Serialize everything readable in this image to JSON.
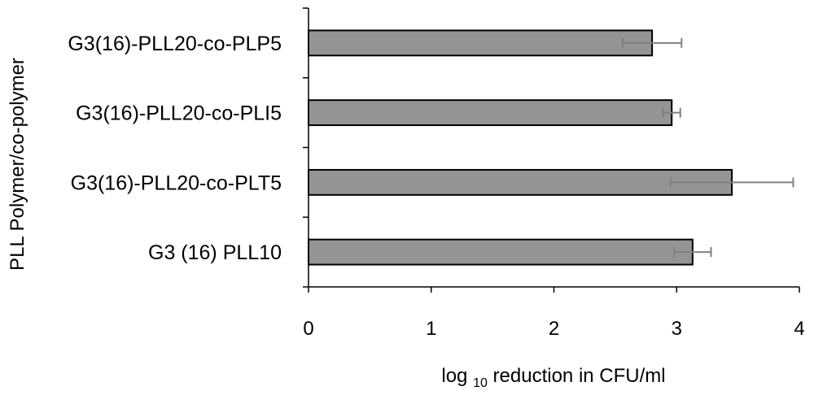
{
  "chart_data": {
    "type": "bar",
    "orientation": "horizontal",
    "categories": [
      "G3(16)-PLL20-co-PLP5",
      "G3(16)-PLL20-co-PLI5",
      "G3(16)-PLL20-co-PLT5",
      "G3 (16) PLL10"
    ],
    "values": [
      2.8,
      2.96,
      3.45,
      3.13
    ],
    "errors": [
      0.24,
      0.07,
      0.5,
      0.15
    ],
    "xlim": [
      0,
      4
    ],
    "xticks": [
      "0",
      "1",
      "2",
      "3",
      "4"
    ],
    "xlabel": {
      "prefix": "log ",
      "subscript": "10",
      "suffix": " reduction in CFU/ml"
    },
    "ylabel": "PLL Polymer/co-polymer",
    "grid": false,
    "legend": "none",
    "colors": {
      "bar_fill": "#949494",
      "bar_edge": "#000000",
      "error_bar": "#808080",
      "axis": "#000000"
    }
  }
}
